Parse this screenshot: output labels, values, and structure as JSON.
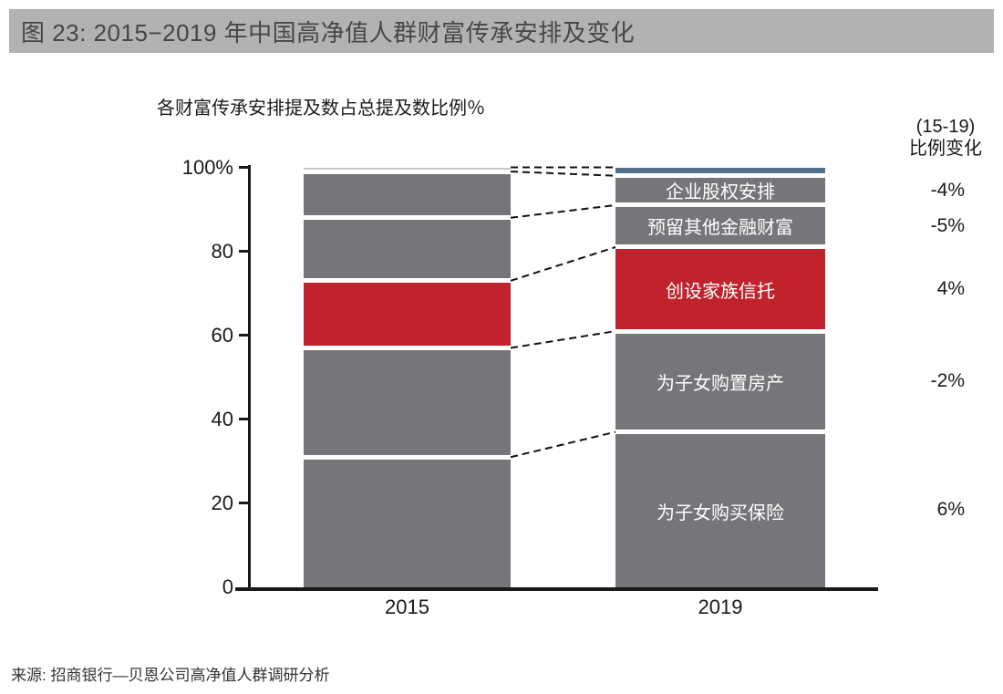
{
  "figure": {
    "title": "图 23:  2015−2019 年中国高净值人群财富传承安排及变化",
    "subtitle": "各财富传承安排提及数占总提及数比例％",
    "change_header_line1": "(15-19)",
    "change_header_line2": "比例变化",
    "source": "来源: 招商银行—贝恩公司高净值人群调研分析"
  },
  "chart_data": {
    "type": "bar",
    "subtype": "100%-stacked-column",
    "title": "各财富传承安排提及数占总提及数比例％",
    "categories": [
      "2015",
      "2019"
    ],
    "ylim": [
      0,
      100
    ],
    "grid": false,
    "legend_position": "labels-inside-2019-bar",
    "y_axis": {
      "ticks": [
        {
          "label": "100%",
          "value": 100
        },
        {
          "label": "80",
          "value": 80
        },
        {
          "label": "60",
          "value": 60
        },
        {
          "label": "40",
          "value": 40
        },
        {
          "label": "20",
          "value": 20
        },
        {
          "label": "0",
          "value": 0
        }
      ]
    },
    "segments_bottom_to_top": [
      {
        "label": "为子女购买保险",
        "values": {
          "2015": 31,
          "2019": 37
        },
        "change": "6%",
        "color": "#76767a"
      },
      {
        "label": "为子女购置房产",
        "values": {
          "2015": 26,
          "2019": 24
        },
        "change": "-2%",
        "color": "#76767a"
      },
      {
        "label": "创设家族信托",
        "values": {
          "2015": 16,
          "2019": 20
        },
        "change": "4%",
        "color": "#c0232b"
      },
      {
        "label": "预留其他金融财富",
        "values": {
          "2015": 15,
          "2019": 10
        },
        "change": "-5%",
        "color": "#76767a"
      },
      {
        "label": "企业股权安排",
        "values": {
          "2015": 11,
          "2019": 7
        },
        "change": "-4%",
        "color": "#76767a"
      },
      {
        "label": "",
        "values": {
          "2015": 1,
          "2019": 2
        },
        "change": "",
        "colors": {
          "2015": "#c9c9c9",
          "2019": "#56718c"
        }
      }
    ],
    "colors": {
      "bar_gray": "#76767a",
      "highlight_red": "#c0232b",
      "top_sliver_2015": "#c9c9c9",
      "top_sliver_2019": "#56718c",
      "title_bar_bg": "#b2b2b2",
      "axis": "#1a1a1a",
      "connector_dashed": "#111111"
    }
  }
}
